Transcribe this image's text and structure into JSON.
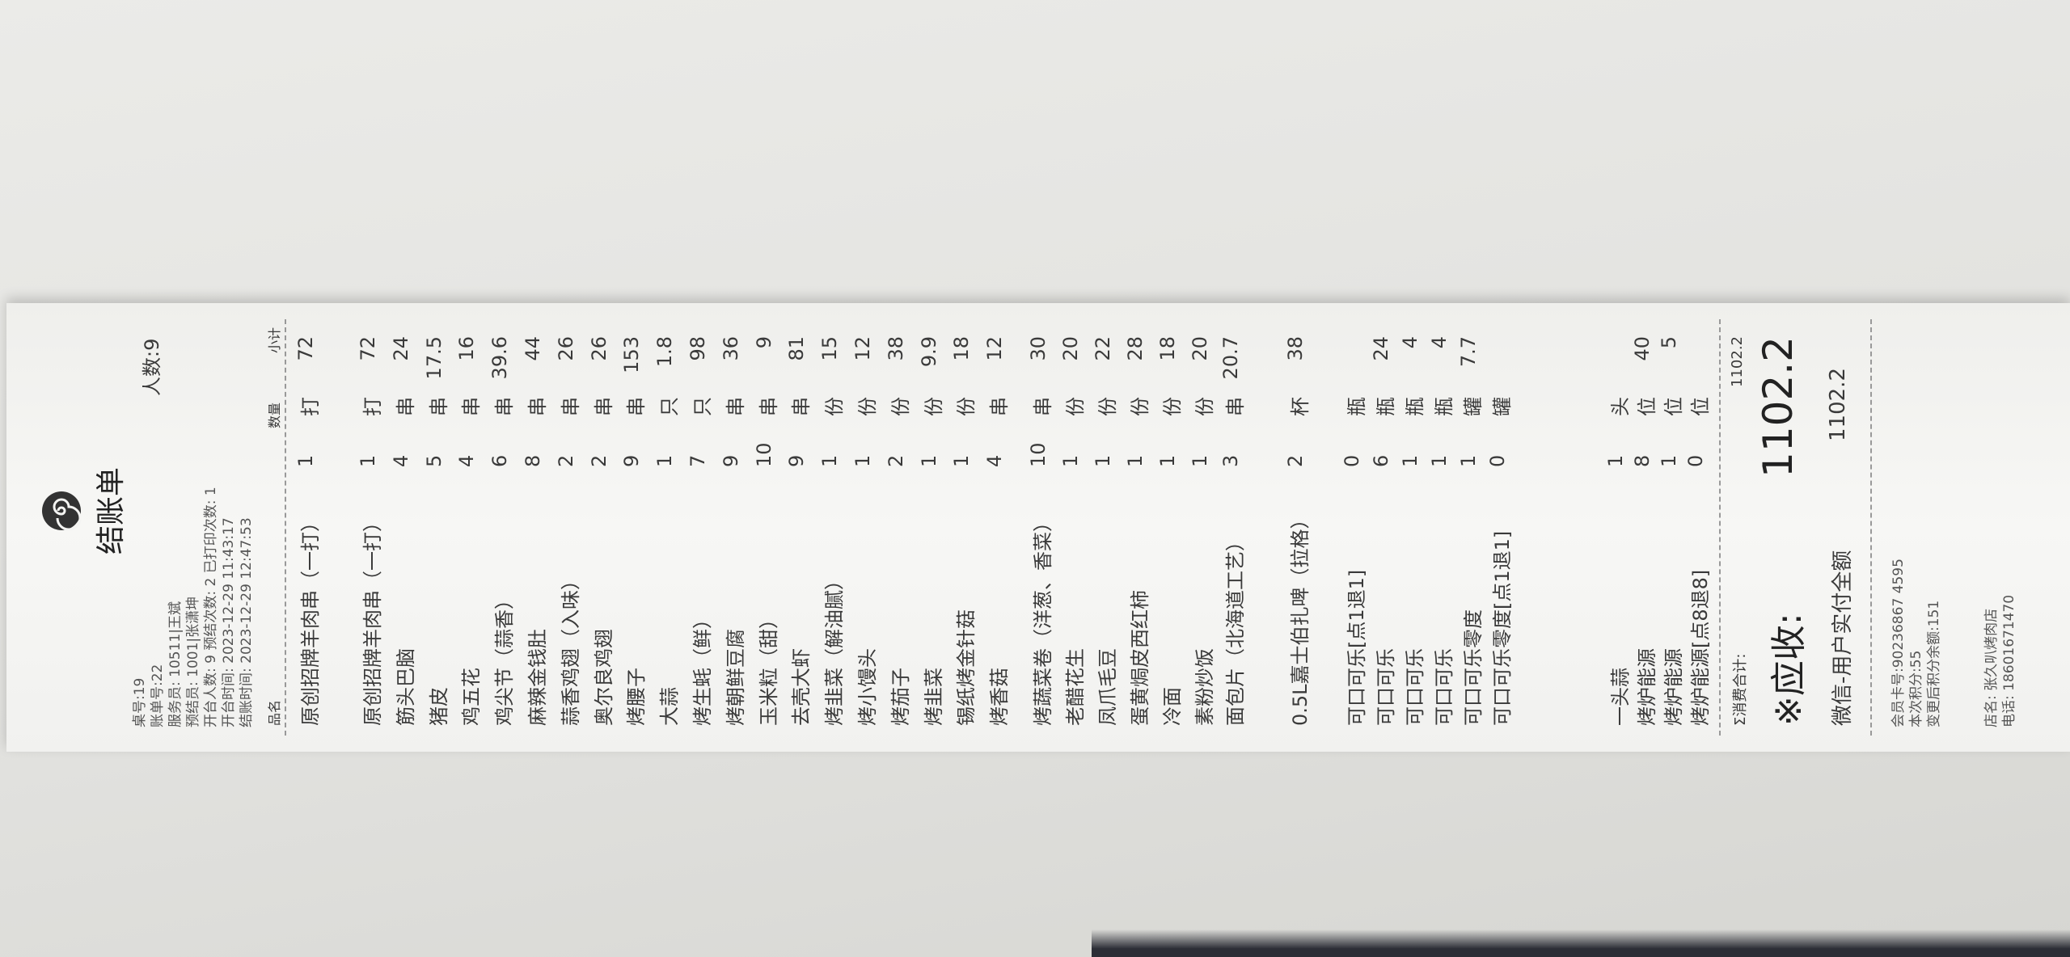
{
  "header": {
    "title": "结账单",
    "guests": "人数:9",
    "info": [
      "桌号:19",
      "账单号:22",
      "服务员: 10511|王斌",
      "预结员: 1001|张潇坤",
      "开台人数: 9  预结次数: 2  已打印次数: 1",
      "开台时间: 2023-12-29 11:43:17",
      "结账时间: 2023-12-29 12:47:53"
    ]
  },
  "columns": {
    "name": "品名",
    "qty": "数量",
    "subtotal": "小计"
  },
  "item_groups": [
    [
      {
        "name": "原创招牌羊肉串（一打）",
        "qty": 1,
        "unit": "打",
        "subtotal": 72
      }
    ],
    [
      {
        "name": "原创招牌羊肉串（一打）",
        "qty": 1,
        "unit": "打",
        "subtotal": 72
      },
      {
        "name": "筋头巴脑",
        "qty": 4,
        "unit": "串",
        "subtotal": 24
      },
      {
        "name": "猪皮",
        "qty": 5,
        "unit": "串",
        "subtotal": 17.5
      },
      {
        "name": "鸡五花",
        "qty": 4,
        "unit": "串",
        "subtotal": 16
      },
      {
        "name": "鸡尖节（蒜香）",
        "qty": 6,
        "unit": "串",
        "subtotal": 39.6
      },
      {
        "name": "麻辣金钱肚",
        "qty": 8,
        "unit": "串",
        "subtotal": 44
      },
      {
        "name": "蒜香鸡翅（入味）",
        "qty": 2,
        "unit": "串",
        "subtotal": 26
      },
      {
        "name": "奥尔良鸡翅",
        "qty": 2,
        "unit": "串",
        "subtotal": 26
      },
      {
        "name": "烤腰子",
        "qty": 9,
        "unit": "串",
        "subtotal": 153
      },
      {
        "name": "大蒜",
        "qty": 1,
        "unit": "只",
        "subtotal": 1.8
      },
      {
        "name": "烤生蚝（鲜）",
        "qty": 7,
        "unit": "只",
        "subtotal": 98
      },
      {
        "name": "烤朝鲜豆腐",
        "qty": 9,
        "unit": "串",
        "subtotal": 36
      },
      {
        "name": "玉米粒（甜）",
        "qty": 10,
        "unit": "串",
        "subtotal": 9
      },
      {
        "name": "去壳大虾",
        "qty": 9,
        "unit": "串",
        "subtotal": 81
      },
      {
        "name": "烤韭菜（解油腻）",
        "qty": 1,
        "unit": "份",
        "subtotal": 15
      },
      {
        "name": "烤小馒头",
        "qty": 1,
        "unit": "份",
        "subtotal": 12
      },
      {
        "name": "烤茄子",
        "qty": 2,
        "unit": "份",
        "subtotal": 38
      },
      {
        "name": "烤韭菜",
        "qty": 1,
        "unit": "份",
        "subtotal": 9.9
      },
      {
        "name": "锡纸烤金针菇",
        "qty": 1,
        "unit": "份",
        "subtotal": 18
      },
      {
        "name": "烤香菇",
        "qty": 4,
        "unit": "串",
        "subtotal": 12
      }
    ],
    [
      {
        "name": "烤蔬菜卷（洋葱、香菜）",
        "qty": 10,
        "unit": "串",
        "subtotal": 30
      },
      {
        "name": "老醋花生",
        "qty": 1,
        "unit": "份",
        "subtotal": 20
      },
      {
        "name": "凤爪毛豆",
        "qty": 1,
        "unit": "份",
        "subtotal": 22
      },
      {
        "name": "蛋黄焗皮西红柿",
        "qty": 1,
        "unit": "份",
        "subtotal": 28
      },
      {
        "name": "冷面",
        "qty": 1,
        "unit": "份",
        "subtotal": 18
      },
      {
        "name": "素粉炒饭",
        "qty": 1,
        "unit": "份",
        "subtotal": 20
      }
    ],
    [
      {
        "name": "面包片（北海道工艺）",
        "qty": 3,
        "unit": "串",
        "subtotal": 20.7
      },
      {
        "name": "0.5L嘉士伯扎啤（拉格）",
        "qty": 2,
        "unit": "杯",
        "subtotal": 38
      }
    ],
    [
      {
        "name": "可口可乐[点1退1]",
        "qty": 0,
        "unit": "瓶"
      },
      {
        "name": "可口可乐",
        "qty": 6,
        "unit": "瓶",
        "subtotal": 24
      },
      {
        "name": "可口可乐",
        "qty": 1,
        "unit": "瓶",
        "subtotal": 4
      },
      {
        "name": "可口可乐",
        "qty": 1,
        "unit": "瓶",
        "subtotal": 4
      },
      {
        "name": "可口可乐零度",
        "qty": 1,
        "unit": "罐",
        "subtotal": 7.7
      },
      {
        "name": "可口可乐零度[点1退1]",
        "qty": 0,
        "unit": "罐"
      }
    ],
    [
      {
        "name": "一头蒜",
        "qty": 1,
        "unit": "头"
      },
      {
        "name": "烤炉能源",
        "qty": 8,
        "unit": "位",
        "subtotal": 40
      },
      {
        "name": "烤炉能源",
        "qty": 1,
        "unit": "位",
        "subtotal": 5
      },
      {
        "name": "烤炉能源[点8退8]",
        "qty": 0,
        "unit": "位"
      }
    ]
  ],
  "totals": {
    "consumption_label": "Σ消费合计:",
    "consumption": 1102.2,
    "receivable_label": "※应收:",
    "receivable": 1102.2,
    "payment_label": "微信-用户实付全额",
    "payment": 1102.2
  },
  "member": [
    "会员卡号:90236867 4595",
    "本次积分:55",
    "变更后积分余额:151"
  ],
  "store": [
    "店名: 张久叭烤肉店",
    "电话: 18601671470"
  ]
}
